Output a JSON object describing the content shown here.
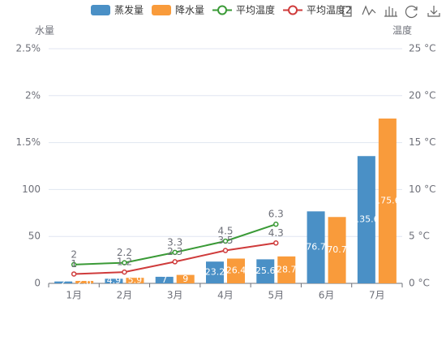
{
  "chart_data": {
    "type": "bar",
    "categories": [
      "1月",
      "2月",
      "3月",
      "4月",
      "5月",
      "6月",
      "7月"
    ],
    "series": [
      {
        "name": "蒸发量",
        "type": "bar",
        "color": "#4a90c6",
        "values": [
          2,
          4.9,
          7,
          23.2,
          25.6,
          76.7,
          135.6
        ]
      },
      {
        "name": "降水量",
        "type": "bar",
        "color": "#f99b3b",
        "values": [
          2.6,
          5.9,
          9,
          26.4,
          28.7,
          70.7,
          175.6
        ]
      },
      {
        "name": "平均温度",
        "type": "line",
        "axis": "y2",
        "color": "#3a9a36",
        "values": [
          2,
          2.2,
          3.3,
          4.5,
          6.3,
          null,
          null
        ]
      },
      {
        "name": "平均温度2",
        "type": "line",
        "axis": "y2",
        "color": "#cf3b3b",
        "values": [
          1,
          1.2,
          2.3,
          3.5,
          4.3,
          null,
          null
        ]
      }
    ],
    "ylabel": "水量",
    "y2label": "温度",
    "ylim": [
      0,
      250
    ],
    "yticks": [
      0,
      50,
      100,
      {
        "value": 150,
        "label": "1.5%"
      },
      {
        "value": 200,
        "label": "2%"
      },
      {
        "value": 250,
        "label": "2.5%"
      }
    ],
    "y2lim": [
      0,
      25
    ],
    "y2ticks": [
      {
        "value": 0,
        "label": "0 °C"
      },
      {
        "value": 5,
        "label": "5 °C"
      },
      {
        "value": 10,
        "label": "10 °C"
      },
      {
        "value": 15,
        "label": "15 °C"
      },
      {
        "value": 20,
        "label": "20 °C"
      },
      {
        "value": 25,
        "label": "25 °C"
      }
    ],
    "grid": true,
    "legend": "top"
  }
}
